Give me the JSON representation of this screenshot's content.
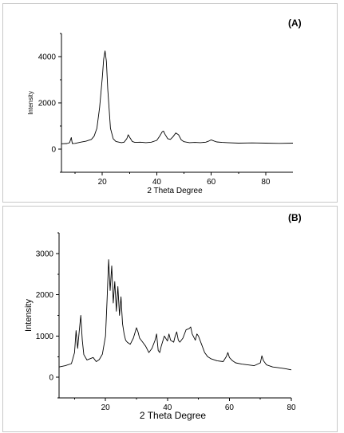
{
  "chart_data": [
    {
      "type": "line",
      "panel_label": "(A)",
      "xlabel": "2 Theta Degree",
      "ylabel": "Intensity",
      "xlim": [
        5,
        90
      ],
      "ylim": [
        -1000,
        5000
      ],
      "xticks": [
        20,
        40,
        60,
        80
      ],
      "yticks": [
        0,
        2000,
        4000
      ],
      "grid": false,
      "series": [
        {
          "x": [
            5,
            7,
            8,
            8.6,
            9,
            10,
            12,
            14,
            16,
            17,
            18,
            19,
            20,
            20.5,
            21,
            21.5,
            22,
            23,
            24,
            25,
            27,
            28,
            29,
            29.5,
            30,
            31,
            32,
            34,
            36,
            38,
            40,
            41,
            42,
            42.5,
            43,
            44,
            45,
            46,
            47,
            48,
            49,
            50,
            52,
            54,
            56,
            58,
            59,
            60,
            61,
            62,
            64,
            66,
            70,
            75,
            80,
            85,
            90
          ],
          "y": [
            230,
            240,
            280,
            500,
            240,
            250,
            300,
            340,
            420,
            560,
            900,
            1800,
            3100,
            3900,
            4250,
            3800,
            2600,
            900,
            450,
            330,
            280,
            300,
            450,
            620,
            520,
            330,
            290,
            300,
            280,
            300,
            380,
            550,
            750,
            780,
            650,
            450,
            420,
            540,
            700,
            620,
            400,
            320,
            280,
            290,
            280,
            300,
            340,
            400,
            350,
            310,
            290,
            280,
            260,
            270,
            260,
            250,
            260
          ]
        }
      ]
    },
    {
      "type": "line",
      "panel_label": "(B)",
      "xlabel": "2 Theta Degree",
      "ylabel": "Intensity",
      "xlim": [
        5,
        80
      ],
      "ylim": [
        -500,
        3500
      ],
      "xticks": [
        20,
        40,
        60,
        80
      ],
      "yticks": [
        0,
        1000,
        2000,
        3000
      ],
      "grid": false,
      "series": [
        {
          "x": [
            5,
            7,
            9,
            10,
            10.5,
            11,
            11.5,
            12,
            12.5,
            13,
            14,
            16,
            17,
            18,
            19,
            20,
            20.5,
            21,
            21.5,
            22,
            22.5,
            23,
            23.5,
            24,
            24.5,
            25,
            25.5,
            26,
            26.5,
            27,
            28,
            29,
            30,
            30.5,
            31,
            32,
            33,
            34,
            35,
            36,
            36.5,
            37,
            37.5,
            38,
            39,
            40,
            40.5,
            41,
            42,
            42.5,
            43,
            43.5,
            44,
            45,
            46,
            47,
            47.5,
            48,
            49,
            49.5,
            50,
            51,
            52,
            53,
            54,
            56,
            58,
            59,
            59.5,
            60,
            61,
            62,
            64,
            66,
            68,
            70,
            70.5,
            71,
            72,
            74,
            76,
            78,
            80
          ],
          "y": [
            250,
            280,
            330,
            600,
            1130,
            700,
            1100,
            1500,
            900,
            550,
            420,
            480,
            380,
            430,
            560,
            1000,
            1850,
            2850,
            2100,
            2700,
            1800,
            2320,
            1600,
            2200,
            1500,
            1950,
            1300,
            1050,
            900,
            850,
            800,
            950,
            1200,
            1100,
            950,
            850,
            750,
            600,
            700,
            900,
            1050,
            650,
            600,
            750,
            1000,
            880,
            1050,
            900,
            850,
            1000,
            1100,
            900,
            850,
            950,
            1150,
            1180,
            1220,
            1050,
            900,
            1050,
            1000,
            800,
            600,
            500,
            450,
            400,
            380,
            500,
            600,
            480,
            400,
            350,
            320,
            300,
            280,
            350,
            520,
            400,
            300,
            250,
            230,
            210,
            180
          ]
        }
      ]
    }
  ]
}
